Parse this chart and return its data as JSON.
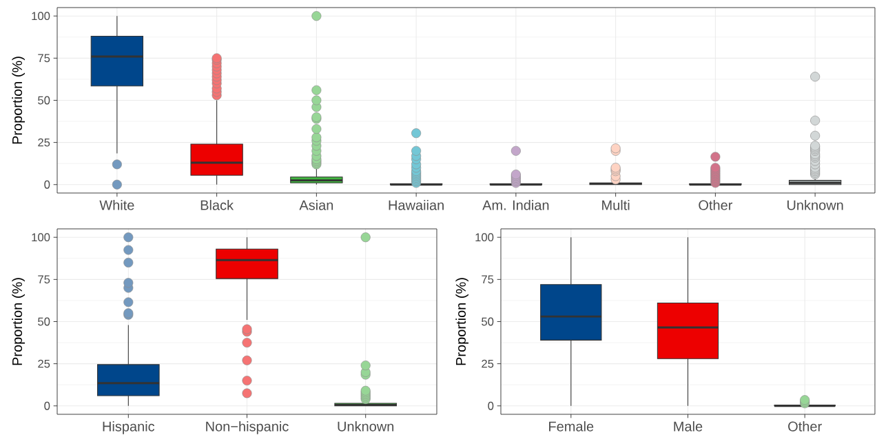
{
  "chart_data": [
    {
      "type": "box",
      "ylabel": "Proportion (%)",
      "categories": [
        "White",
        "Black",
        "Asian",
        "Hawaiian",
        "Am. Indian",
        "Multi",
        "Other",
        "Unknown"
      ],
      "colors": [
        "#00468b",
        "#ed0000",
        "#42b540",
        "#0099b4",
        "#925e9f",
        "#fdaf91",
        "#ad002a",
        "#adb6b6"
      ],
      "boxes": [
        {
          "low": 18.5,
          "q1": 58.5,
          "median": 76,
          "q3": 88,
          "high": 100,
          "outliers": [
            12,
            0
          ]
        },
        {
          "low": 0,
          "q1": 5.5,
          "median": 13,
          "q3": 24,
          "high": 50,
          "outliers": [
            53,
            55,
            57,
            60,
            62,
            64,
            66,
            68,
            70,
            72,
            74,
            75
          ]
        },
        {
          "low": 0,
          "q1": 1,
          "median": 2.5,
          "q3": 4.5,
          "high": 11,
          "outliers": [
            12,
            13,
            14,
            15,
            17,
            20,
            23,
            26,
            28,
            33,
            39,
            40,
            46,
            50,
            56,
            100
          ]
        },
        {
          "low": 0,
          "q1": 0,
          "median": 0,
          "q3": 0.5,
          "high": 0.5,
          "outliers": [
            1,
            2,
            3,
            4,
            5,
            6,
            7,
            8,
            10,
            12,
            15,
            17,
            20,
            30.5
          ]
        },
        {
          "low": 0,
          "q1": 0,
          "median": 0,
          "q3": 0.5,
          "high": 0.5,
          "outliers": [
            1,
            2,
            3,
            4,
            5,
            6,
            20
          ]
        },
        {
          "low": 0,
          "q1": 0,
          "median": 0.5,
          "q3": 1,
          "high": 2,
          "outliers": [
            3,
            5,
            8,
            9,
            10,
            20,
            21.5
          ]
        },
        {
          "low": 0,
          "q1": 0,
          "median": 0,
          "q3": 0.5,
          "high": 0.5,
          "outliers": [
            1,
            2,
            3,
            4,
            5,
            6,
            7,
            8,
            9,
            10,
            16.5
          ]
        },
        {
          "low": 0,
          "q1": 0,
          "median": 1,
          "q3": 2.5,
          "high": 5,
          "outliers": [
            6,
            7,
            8,
            9,
            10,
            12,
            14,
            16,
            17,
            18,
            20,
            21,
            22,
            23,
            29,
            38,
            64
          ]
        }
      ],
      "ylim": [
        -5,
        105
      ],
      "yticks": [
        0,
        25,
        50,
        75,
        100
      ],
      "grid": true
    },
    {
      "type": "box",
      "ylabel": "Proportion (%)",
      "categories": [
        "Hispanic",
        "Non−hispanic",
        "Unknown"
      ],
      "colors": [
        "#00468b",
        "#ed0000",
        "#42b540"
      ],
      "boxes": [
        {
          "low": 0,
          "q1": 6,
          "median": 13.5,
          "q3": 24.5,
          "high": 48,
          "outliers": [
            54,
            55,
            61.5,
            70,
            73,
            85,
            92.5,
            100
          ]
        },
        {
          "low": 51,
          "q1": 75.5,
          "median": 86.5,
          "q3": 93,
          "high": 100,
          "outliers": [
            7.5,
            15,
            27,
            37.5,
            44,
            45.5
          ]
        },
        {
          "low": 0,
          "q1": 0,
          "median": 0.5,
          "q3": 1.5,
          "high": 3.5,
          "outliers": [
            4,
            5,
            6,
            7,
            8,
            9,
            18.5,
            20,
            24,
            100
          ]
        }
      ],
      "ylim": [
        -5,
        105
      ],
      "yticks": [
        0,
        25,
        50,
        75,
        100
      ],
      "grid": true
    },
    {
      "type": "box",
      "ylabel": "Proportion (%)",
      "categories": [
        "Female",
        "Male",
        "Other"
      ],
      "colors": [
        "#00468b",
        "#ed0000",
        "#42b540"
      ],
      "boxes": [
        {
          "low": 0,
          "q1": 39,
          "median": 53,
          "q3": 72,
          "high": 100
        },
        {
          "low": 0,
          "q1": 28,
          "median": 46.5,
          "q3": 61,
          "high": 100
        },
        {
          "low": 0,
          "q1": 0,
          "median": 0,
          "q3": 0.5,
          "high": 1,
          "outliers": [
            1.5,
            2.5,
            3.5
          ]
        }
      ],
      "ylim": [
        -5,
        105
      ],
      "yticks": [
        0,
        25,
        50,
        75,
        100
      ],
      "grid": true
    }
  ]
}
